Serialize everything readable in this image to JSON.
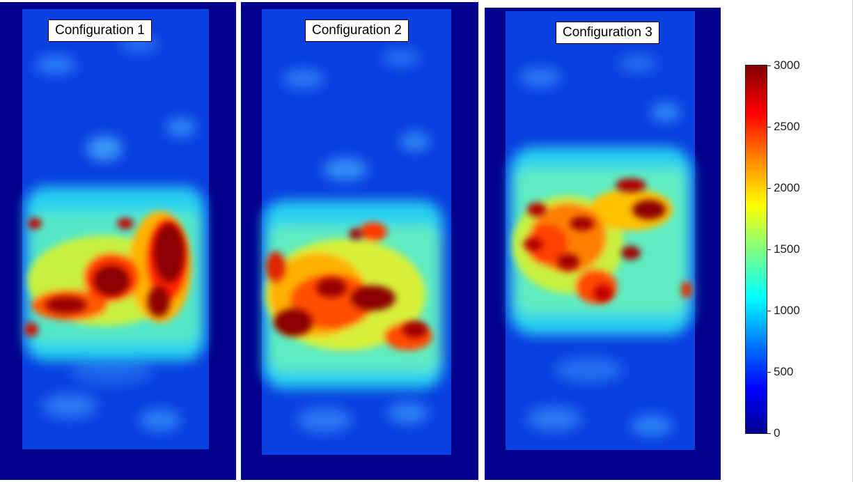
{
  "panels": [
    {
      "label": "Configuration 1"
    },
    {
      "label": "Configuration 2"
    },
    {
      "label": "Configuration 3"
    }
  ],
  "colorbar": {
    "ticks": [
      "3000",
      "2500",
      "2000",
      "1500",
      "1000",
      "500",
      "0"
    ],
    "min": 0,
    "max": 3000,
    "colormap": "jet"
  }
}
